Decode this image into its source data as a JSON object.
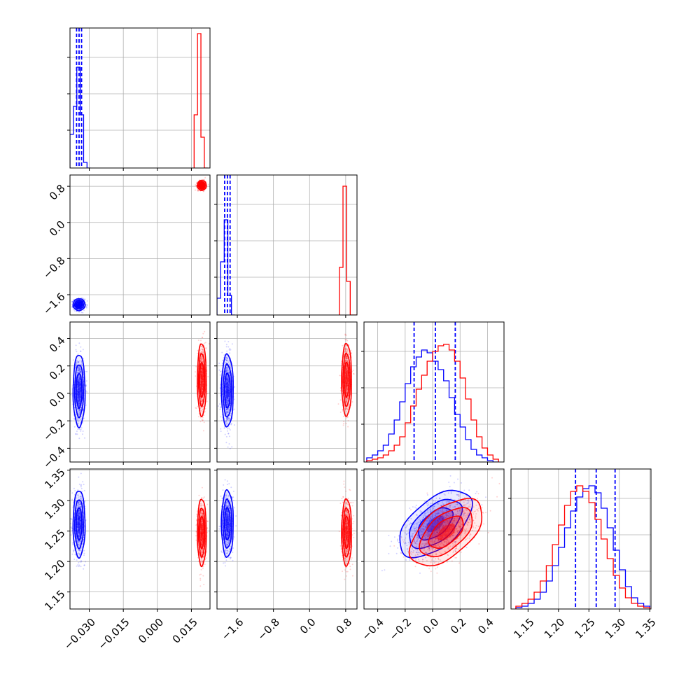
{
  "chart_data": {
    "type": "corner",
    "title": "",
    "grid": true,
    "colors": {
      "series_a": "#0000ff",
      "series_b": "#ff0000"
    },
    "params": [
      {
        "range": [
          -0.0385,
          0.0232
        ],
        "ticks": [
          -0.03,
          -0.015,
          0.0,
          0.015
        ],
        "tick_labels": [
          "−0.030",
          "−0.015",
          "0.000",
          "0.015"
        ]
      },
      {
        "range": [
          -2.05,
          1.05
        ],
        "ticks": [
          -1.6,
          -0.8,
          0.0,
          0.8
        ],
        "tick_labels": [
          "−1.6",
          "−0.8",
          "0.0",
          "0.8"
        ]
      },
      {
        "range": [
          -0.5,
          0.52
        ],
        "ticks": [
          -0.4,
          -0.2,
          0.0,
          0.2,
          0.4
        ],
        "tick_labels": [
          "−0.4",
          "−0.2",
          "0.0",
          "0.2",
          "0.4"
        ]
      },
      {
        "range": [
          1.122,
          1.352
        ],
        "ticks": [
          1.15,
          1.2,
          1.25,
          1.3,
          1.35
        ],
        "tick_labels": [
          "1.15",
          "1.20",
          "1.25",
          "1.30",
          "1.35"
        ]
      }
    ],
    "series": [
      {
        "color": "#0000ff",
        "mean": [
          -0.0345,
          -1.82,
          0.02,
          1.262
        ],
        "sd": [
          0.0012,
          0.06,
          0.12,
          0.025
        ],
        "corr_2_3": 0.55,
        "quantiles": [
          [
            -0.0356,
            -0.0345,
            -0.0334
          ],
          [
            -1.88,
            -1.82,
            -1.76
          ],
          [
            -0.135,
            0.02,
            0.165
          ],
          [
            1.228,
            1.262,
            1.293
          ]
        ],
        "histograms": [
          {
            "edges": [
              -0.0385,
              -0.037,
              -0.0355,
              -0.034,
              -0.0325,
              -0.031,
              -0.0295
            ],
            "counts": [
              0.24,
              0.44,
              0.72,
              0.38,
              0.04,
              0.0
            ]
          },
          {
            "edges": [
              -2.05,
              -1.97,
              -1.89,
              -1.81,
              -1.73,
              -1.65
            ],
            "counts": [
              0.12,
              0.38,
              0.68,
              0.14,
              0.0
            ]
          },
          {
            "edges": [
              -0.48,
              -0.44,
              -0.4,
              -0.36,
              -0.32,
              -0.28,
              -0.24,
              -0.2,
              -0.16,
              -0.12,
              -0.08,
              -0.04,
              0.0,
              0.04,
              0.08,
              0.12,
              0.16,
              0.2,
              0.24,
              0.28,
              0.32,
              0.36,
              0.4,
              0.44,
              0.48
            ],
            "counts": [
              0.03,
              0.05,
              0.08,
              0.12,
              0.2,
              0.3,
              0.43,
              0.56,
              0.68,
              0.75,
              0.8,
              0.78,
              0.72,
              0.66,
              0.58,
              0.46,
              0.34,
              0.25,
              0.16,
              0.09,
              0.05,
              0.03,
              0.01,
              0.0
            ]
          },
          {
            "edges": [
              1.13,
              1.14,
              1.15,
              1.16,
              1.17,
              1.18,
              1.19,
              1.2,
              1.21,
              1.22,
              1.23,
              1.24,
              1.25,
              1.26,
              1.27,
              1.28,
              1.29,
              1.3,
              1.31,
              1.32,
              1.33,
              1.34,
              1.35
            ],
            "counts": [
              0.01,
              0.02,
              0.04,
              0.07,
              0.12,
              0.2,
              0.31,
              0.44,
              0.58,
              0.7,
              0.8,
              0.86,
              0.88,
              0.83,
              0.72,
              0.58,
              0.42,
              0.28,
              0.16,
              0.08,
              0.04,
              0.02
            ]
          }
        ]
      },
      {
        "color": "#ff0000",
        "mean": [
          0.0196,
          0.82,
          0.1,
          1.248
        ],
        "sd": [
          0.0009,
          0.05,
          0.12,
          0.025
        ],
        "corr_2_3": 0.55,
        "quantiles": null,
        "histograms": [
          {
            "edges": [
              0.0162,
              0.0177,
              0.0192,
              0.0207,
              0.0222
            ],
            "counts": [
              0.38,
              0.96,
              0.22,
              0.0
            ]
          },
          {
            "edges": [
              0.66,
              0.74,
              0.82,
              0.9,
              0.98,
              1.05
            ],
            "counts": [
              0.34,
              0.92,
              0.24,
              0.0,
              0.0
            ]
          },
          {
            "edges": [
              -0.48,
              -0.44,
              -0.4,
              -0.36,
              -0.32,
              -0.28,
              -0.24,
              -0.2,
              -0.16,
              -0.12,
              -0.08,
              -0.04,
              0.0,
              0.04,
              0.08,
              0.12,
              0.16,
              0.2,
              0.24,
              0.28,
              0.32,
              0.36,
              0.4,
              0.44,
              0.48
            ],
            "counts": [
              0.01,
              0.02,
              0.03,
              0.05,
              0.08,
              0.12,
              0.18,
              0.28,
              0.4,
              0.52,
              0.62,
              0.72,
              0.79,
              0.83,
              0.84,
              0.8,
              0.72,
              0.6,
              0.45,
              0.3,
              0.18,
              0.1,
              0.05,
              0.02
            ]
          },
          {
            "edges": [
              1.13,
              1.14,
              1.15,
              1.16,
              1.17,
              1.18,
              1.19,
              1.2,
              1.21,
              1.22,
              1.23,
              1.24,
              1.25,
              1.26,
              1.27,
              1.28,
              1.29,
              1.3,
              1.31,
              1.32,
              1.33,
              1.34,
              1.35
            ],
            "counts": [
              0.02,
              0.04,
              0.07,
              0.12,
              0.2,
              0.31,
              0.46,
              0.6,
              0.74,
              0.84,
              0.88,
              0.84,
              0.76,
              0.64,
              0.5,
              0.36,
              0.24,
              0.15,
              0.08,
              0.04,
              0.02,
              0.01
            ]
          }
        ]
      }
    ]
  }
}
